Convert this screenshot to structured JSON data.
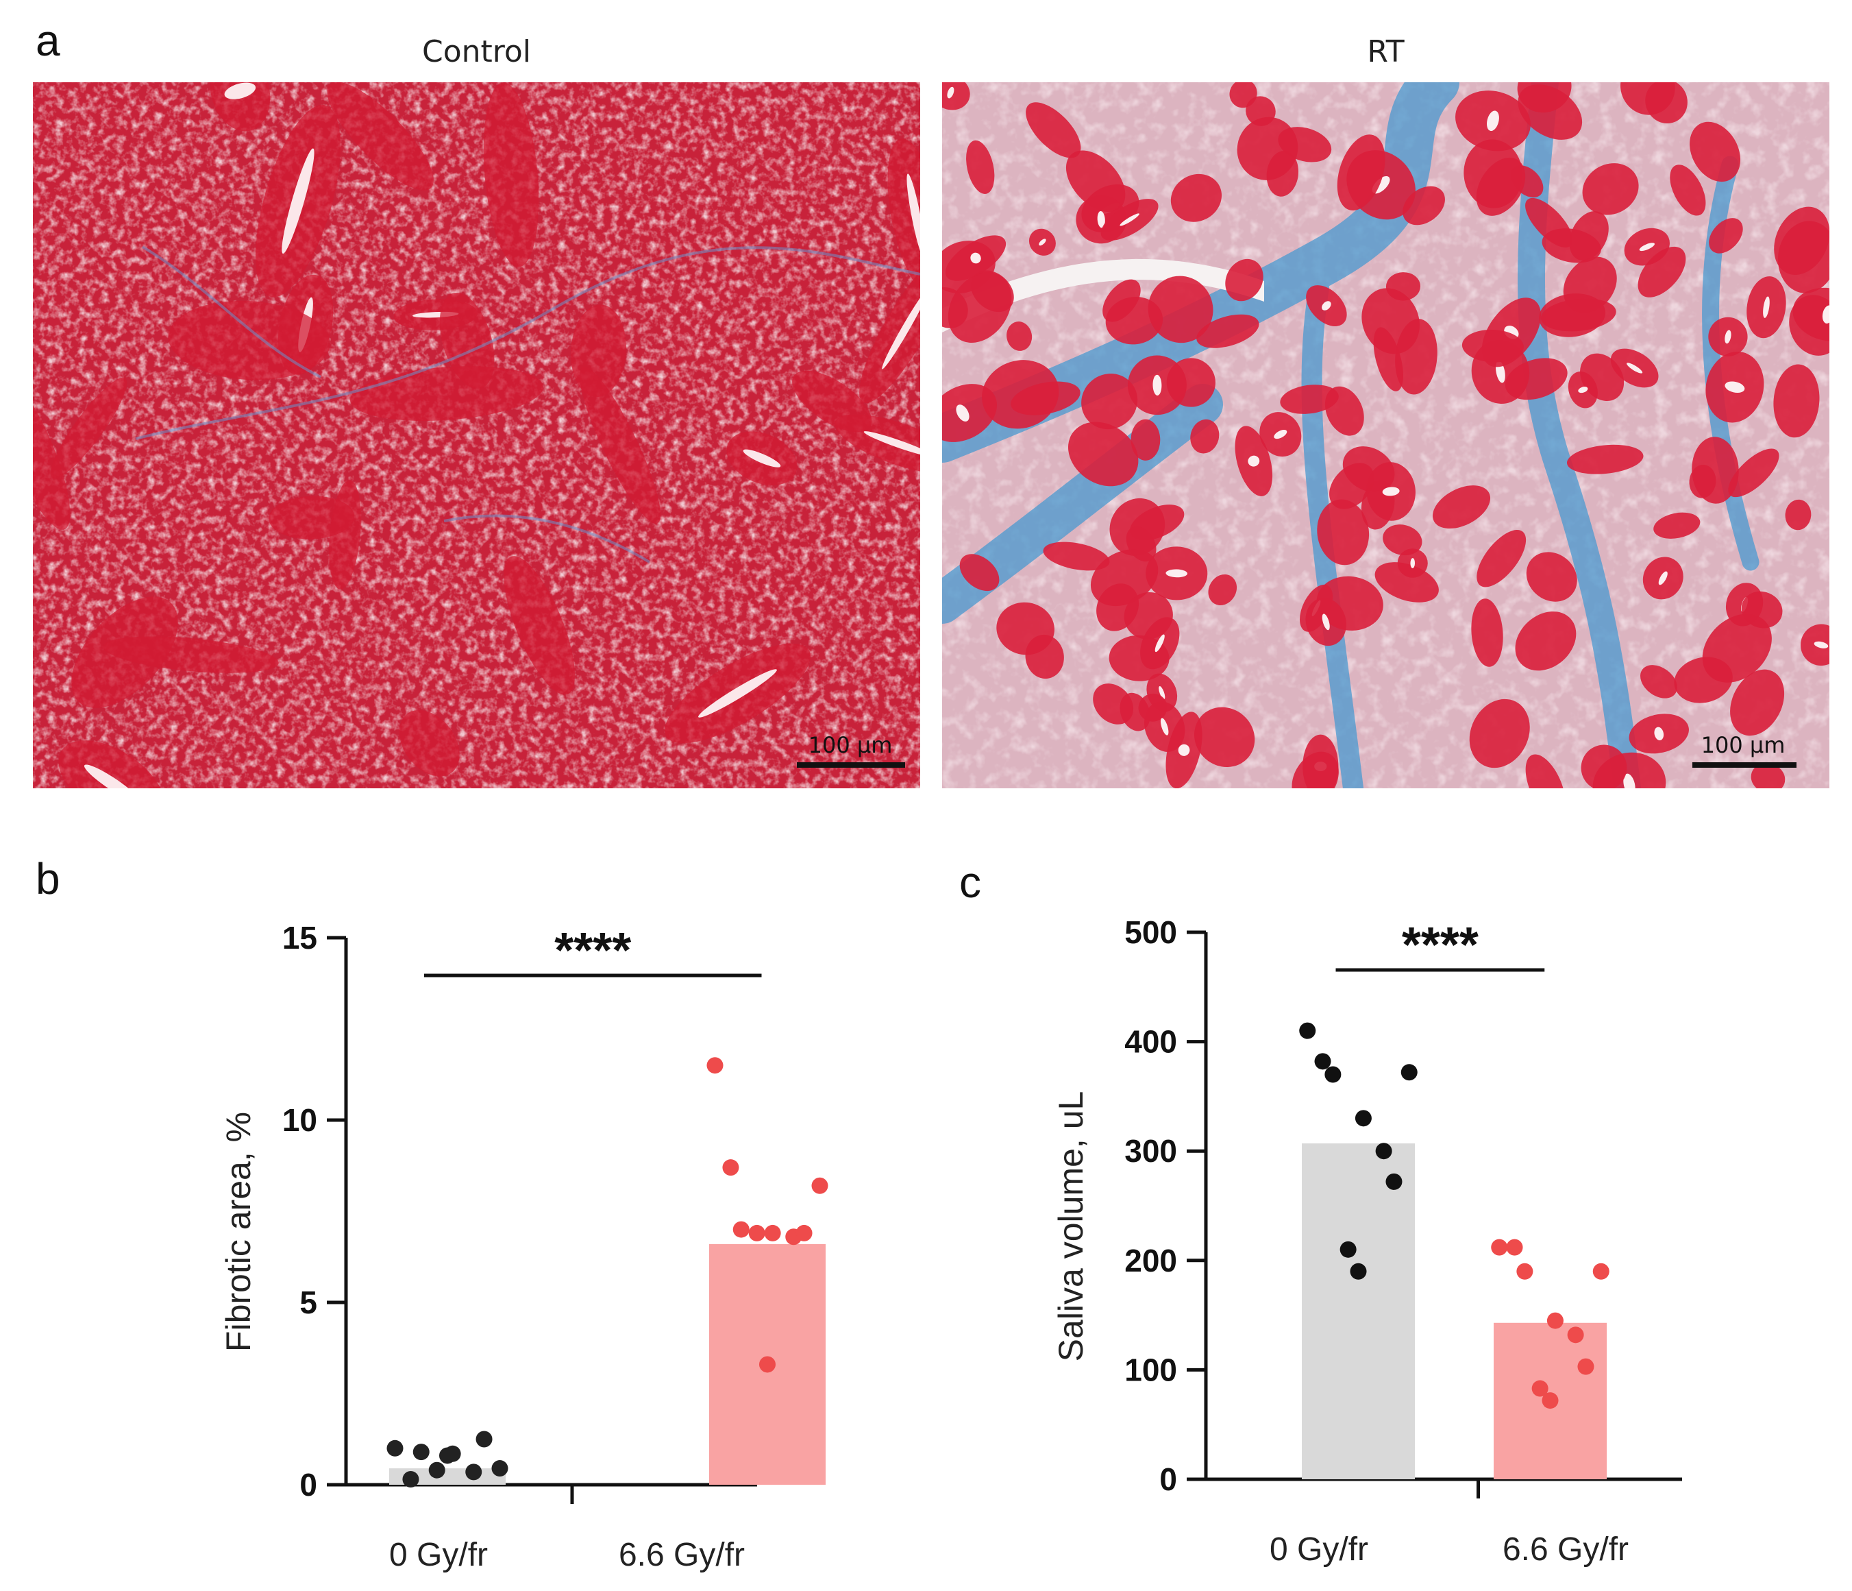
{
  "panel_a": {
    "letter": "a",
    "images": [
      {
        "title": "Control",
        "scale_bar": "100 µm",
        "stain": "Masson trichrome, dense red acini, faint blue stroma"
      },
      {
        "title": "RT",
        "scale_bar": "100 µm",
        "stain": "Masson trichrome, red acini with extensive blue fibrotic stroma"
      }
    ],
    "colors": {
      "tissue_red": "#c8223a",
      "acinus_pink": "#e8b3bf",
      "fibrosis_blue": "#4a9ad0",
      "background_white": "#f4eef0"
    }
  },
  "chart_data": [
    {
      "panel": "b",
      "type": "bar",
      "categories": [
        "0 Gy/fr",
        "6.6 Gy/fr"
      ],
      "values": [
        0.45,
        6.6
      ],
      "ylabel": "Fibrotic area, %",
      "ylim": [
        0,
        15
      ],
      "yticks": [
        0,
        5,
        10,
        15
      ],
      "significance": "****",
      "points": [
        [
          1.0,
          0.15,
          0.45,
          0.9,
          0.85,
          0.35,
          1.25,
          0.4,
          0.8
        ],
        [
          11.5,
          8.7,
          8.2,
          7.0,
          6.9,
          6.8,
          6.9,
          6.9,
          3.3
        ]
      ],
      "bar_colors": [
        "#d9d9d9",
        "#f9a3a3"
      ],
      "point_colors": [
        "#222222",
        "#ee4b4b"
      ],
      "grid": false
    },
    {
      "panel": "c",
      "type": "bar",
      "categories": [
        "0 Gy/fr",
        "6.6 Gy/fr"
      ],
      "values": [
        307,
        143
      ],
      "ylabel": "Saliva volume, uL",
      "ylim": [
        0,
        500
      ],
      "yticks": [
        0,
        100,
        200,
        300,
        400,
        500
      ],
      "significance": "****",
      "points": [
        [
          410,
          382,
          372,
          370,
          330,
          300,
          272,
          210,
          190
        ],
        [
          212,
          212,
          190,
          190,
          145,
          132,
          103,
          83,
          72
        ]
      ],
      "bar_colors": [
        "#d9d9d9",
        "#f9a3a3"
      ],
      "point_colors": [
        "#111111",
        "#ee4b4b"
      ],
      "grid": false
    }
  ]
}
